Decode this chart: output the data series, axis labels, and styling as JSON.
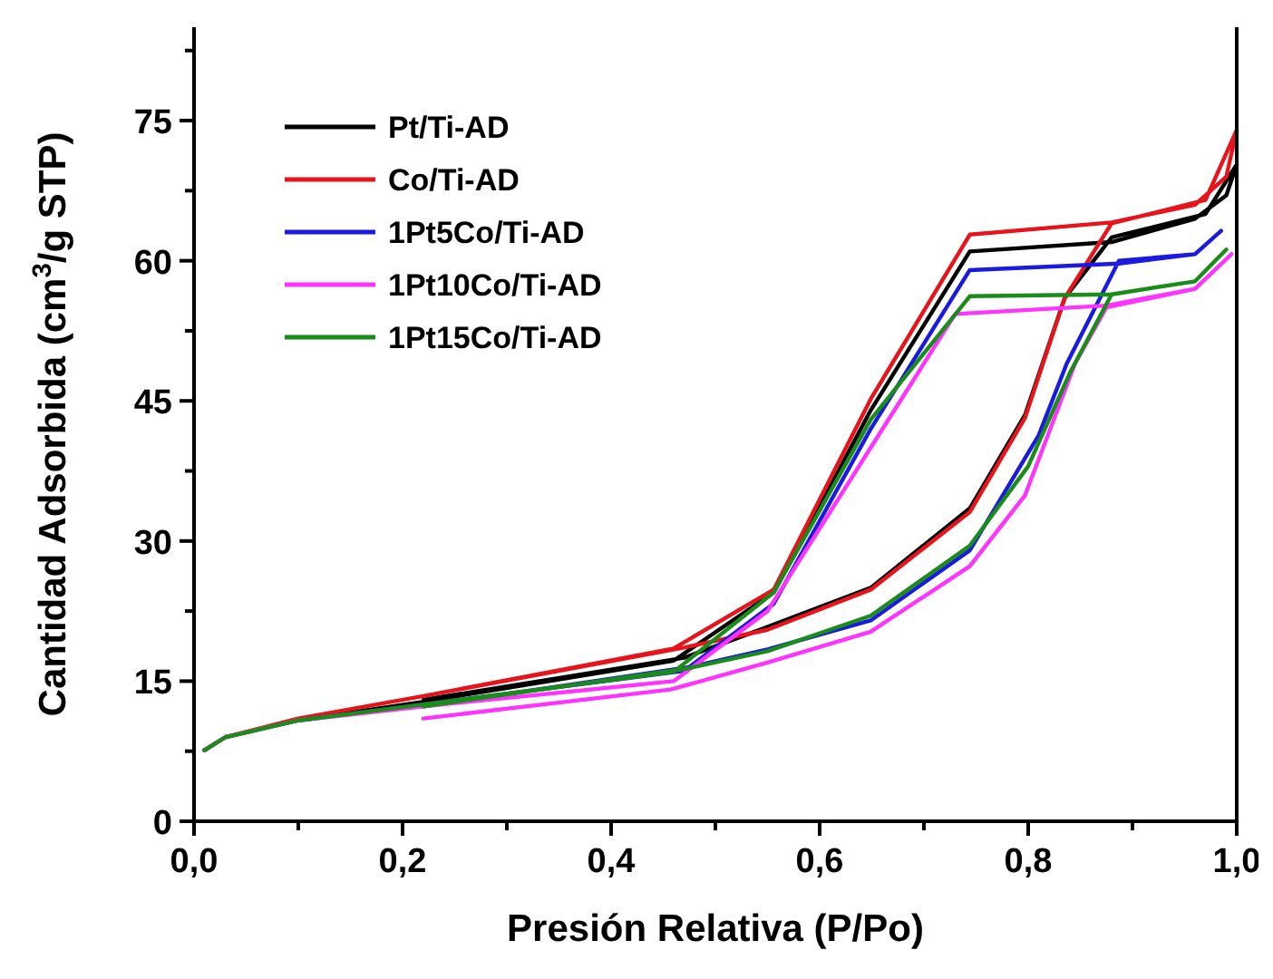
{
  "chart_data": {
    "type": "line",
    "xlabel": "Presión Relativa (P/Po)",
    "ylabel": "Cantidad Adsorbida (cm$^{3}$/g STP)",
    "xlim": [
      0,
      1
    ],
    "ylim": [
      0,
      85
    ],
    "xticks": [
      {
        "value": 0,
        "label": "0,0"
      },
      {
        "value": 0.1,
        "label": null
      },
      {
        "value": 0.2,
        "label": "0,2"
      },
      {
        "value": 0.3,
        "label": null
      },
      {
        "value": 0.4,
        "label": "0,4"
      },
      {
        "value": 0.5,
        "label": null
      },
      {
        "value": 0.6,
        "label": "0,6"
      },
      {
        "value": 0.7,
        "label": null
      },
      {
        "value": 0.8,
        "label": "0,8"
      },
      {
        "value": 0.9,
        "label": null
      },
      {
        "value": 1,
        "label": "1,0"
      }
    ],
    "yticks": [
      0,
      {
        "value": 7.5,
        "label": null
      },
      15,
      {
        "value": 22.5,
        "label": null
      },
      30,
      {
        "value": 37.5,
        "label": null
      },
      45,
      {
        "value": 52.5,
        "label": null
      },
      60,
      {
        "value": 67.5,
        "label": null
      },
      75,
      {
        "value": 82.5,
        "label": null
      }
    ],
    "legend": "top left",
    "grid": false,
    "marker": "none",
    "line_style": "solid",
    "series": [
      {
        "name": "Pt/Ti-AD",
        "color": "#000000",
        "x": [
          0.01,
          0.03,
          0.1,
          0.22,
          0.46,
          0.556,
          0.649,
          0.744,
          0.88,
          0.96,
          0.99,
          1.0,
          0.97,
          0.88,
          0.835,
          0.797,
          0.744,
          0.649,
          0.55,
          0.47,
          0.22
        ],
        "values": [
          7.6,
          9,
          10.8,
          12.8,
          17.2,
          24.5,
          44,
          61,
          62,
          64.5,
          67,
          70.3,
          65,
          62.5,
          56,
          43.5,
          33.5,
          25,
          20.8,
          17.5,
          13
        ]
      },
      {
        "name": "Co/Ti-AD",
        "color": "#e8141b",
        "x": [
          0.01,
          0.03,
          0.1,
          0.22,
          0.46,
          0.556,
          0.649,
          0.744,
          0.88,
          0.96,
          0.99,
          1.0,
          0.97,
          0.88,
          0.835,
          0.797,
          0.744,
          0.649,
          0.55,
          0.47,
          0.22
        ],
        "values": [
          7.6,
          9,
          11,
          13.4,
          18.5,
          24.8,
          45.2,
          62.8,
          64.1,
          66,
          69,
          74,
          66.5,
          64,
          56,
          43.2,
          33.1,
          24.8,
          20.5,
          18.6,
          13.4
        ]
      },
      {
        "name": "1Pt5Co/Ti-AD",
        "color": "#1a1ae0",
        "x": [
          0.1,
          0.22,
          0.47,
          0.556,
          0.649,
          0.744,
          0.887,
          0.96,
          0.985,
          0.96,
          0.887,
          0.837,
          0.81,
          0.744,
          0.649,
          0.55,
          0.475,
          0.22
        ],
        "values": [
          10.8,
          12.5,
          16.1,
          23.3,
          42,
          59,
          59.7,
          60.7,
          63.2,
          60.7,
          60,
          49,
          41.3,
          29,
          21.5,
          18.4,
          16.5,
          12.3
        ]
      },
      {
        "name": "1Pt10Co/Ti-AD",
        "color": "#ff33ff",
        "x": [
          0.01,
          0.03,
          0.1,
          0.22,
          0.46,
          0.55,
          0.649,
          0.73,
          0.875,
          0.96,
          0.995,
          0.96,
          0.875,
          0.845,
          0.797,
          0.744,
          0.649,
          0.55,
          0.457,
          0.22
        ],
        "values": [
          7.6,
          9,
          10.8,
          12.3,
          15,
          22.5,
          40,
          54.3,
          55.2,
          57,
          60.7,
          57,
          55,
          49,
          34.9,
          27.3,
          20.3,
          17,
          14.1,
          11
        ]
      },
      {
        "name": "1Pt15Co/Ti-AD",
        "color": "#1a8c1a",
        "x": [
          0.01,
          0.03,
          0.1,
          0.22,
          0.46,
          0.556,
          0.649,
          0.744,
          0.88,
          0.96,
          0.99,
          0.96,
          0.88,
          0.84,
          0.8,
          0.744,
          0.649,
          0.55,
          0.47,
          0.22
        ],
        "values": [
          7.6,
          9,
          10.8,
          12.5,
          16,
          24.5,
          43,
          56.2,
          56.4,
          57.8,
          61.2,
          57.8,
          56.4,
          48,
          38,
          29.5,
          22,
          18.2,
          16.3,
          12.3
        ]
      }
    ]
  }
}
